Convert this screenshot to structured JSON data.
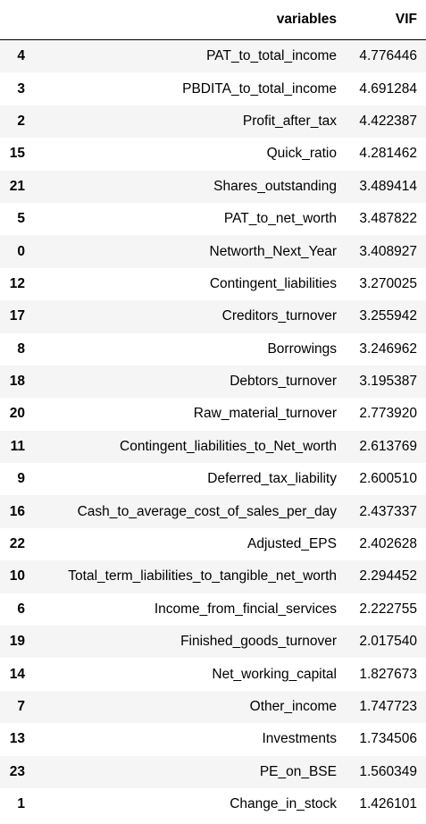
{
  "table": {
    "columns": {
      "index": "",
      "variables": "variables",
      "vif": "VIF"
    },
    "rows": [
      {
        "index": "4",
        "variable": "PAT_to_total_income",
        "vif": "4.776446"
      },
      {
        "index": "3",
        "variable": "PBDITA_to_total_income",
        "vif": "4.691284"
      },
      {
        "index": "2",
        "variable": "Profit_after_tax",
        "vif": "4.422387"
      },
      {
        "index": "15",
        "variable": "Quick_ratio",
        "vif": "4.281462"
      },
      {
        "index": "21",
        "variable": "Shares_outstanding",
        "vif": "3.489414"
      },
      {
        "index": "5",
        "variable": "PAT_to_net_worth",
        "vif": "3.487822"
      },
      {
        "index": "0",
        "variable": "Networth_Next_Year",
        "vif": "3.408927"
      },
      {
        "index": "12",
        "variable": "Contingent_liabilities",
        "vif": "3.270025"
      },
      {
        "index": "17",
        "variable": "Creditors_turnover",
        "vif": "3.255942"
      },
      {
        "index": "8",
        "variable": "Borrowings",
        "vif": "3.246962"
      },
      {
        "index": "18",
        "variable": "Debtors_turnover",
        "vif": "3.195387"
      },
      {
        "index": "20",
        "variable": "Raw_material_turnover",
        "vif": "2.773920"
      },
      {
        "index": "11",
        "variable": "Contingent_liabilities_to_Net_worth",
        "vif": "2.613769"
      },
      {
        "index": "9",
        "variable": "Deferred_tax_liability",
        "vif": "2.600510"
      },
      {
        "index": "16",
        "variable": "Cash_to_average_cost_of_sales_per_day",
        "vif": "2.437337"
      },
      {
        "index": "22",
        "variable": "Adjusted_EPS",
        "vif": "2.402628"
      },
      {
        "index": "10",
        "variable": "Total_term_liabilities_to_tangible_net_worth",
        "vif": "2.294452"
      },
      {
        "index": "6",
        "variable": "Income_from_fincial_services",
        "vif": "2.222755"
      },
      {
        "index": "19",
        "variable": "Finished_goods_turnover",
        "vif": "2.017540"
      },
      {
        "index": "14",
        "variable": "Net_working_capital",
        "vif": "1.827673"
      },
      {
        "index": "7",
        "variable": "Other_income",
        "vif": "1.747723"
      },
      {
        "index": "13",
        "variable": "Investments",
        "vif": "1.734506"
      },
      {
        "index": "23",
        "variable": "PE_on_BSE",
        "vif": "1.560349"
      },
      {
        "index": "1",
        "variable": "Change_in_stock",
        "vif": "1.426101"
      }
    ]
  }
}
